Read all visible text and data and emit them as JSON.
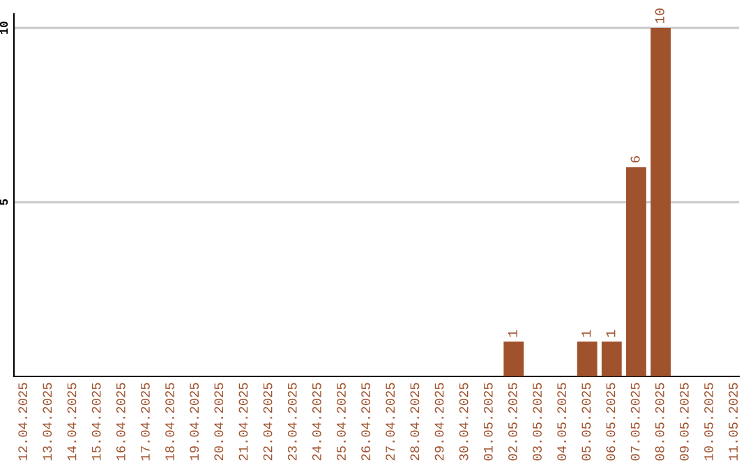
{
  "chart_data": {
    "type": "bar",
    "categories": [
      "12.04.2025",
      "13.04.2025",
      "14.04.2025",
      "15.04.2025",
      "16.04.2025",
      "17.04.2025",
      "18.04.2025",
      "19.04.2025",
      "20.04.2025",
      "21.04.2025",
      "22.04.2025",
      "23.04.2025",
      "24.04.2025",
      "25.04.2025",
      "26.04.2025",
      "27.04.2025",
      "28.04.2025",
      "29.04.2025",
      "30.04.2025",
      "01.05.2025",
      "02.05.2025",
      "03.05.2025",
      "04.05.2025",
      "05.05.2025",
      "06.05.2025",
      "07.05.2025",
      "08.05.2025",
      "09.05.2025",
      "10.05.2025",
      "11.05.2025"
    ],
    "values": [
      0,
      0,
      0,
      0,
      0,
      0,
      0,
      0,
      0,
      0,
      0,
      0,
      0,
      0,
      0,
      0,
      0,
      0,
      0,
      0,
      1,
      0,
      0,
      1,
      1,
      6,
      10,
      0,
      0,
      0
    ],
    "value_labels": [
      null,
      null,
      null,
      null,
      null,
      null,
      null,
      null,
      null,
      null,
      null,
      null,
      null,
      null,
      null,
      null,
      null,
      null,
      null,
      null,
      "1",
      null,
      null,
      "1",
      "1",
      "6",
      "10",
      null,
      null,
      null
    ],
    "color": "#a0522d",
    "ylim": [
      0,
      10.4
    ],
    "yticks": [
      5,
      10
    ],
    "grid": "y"
  }
}
